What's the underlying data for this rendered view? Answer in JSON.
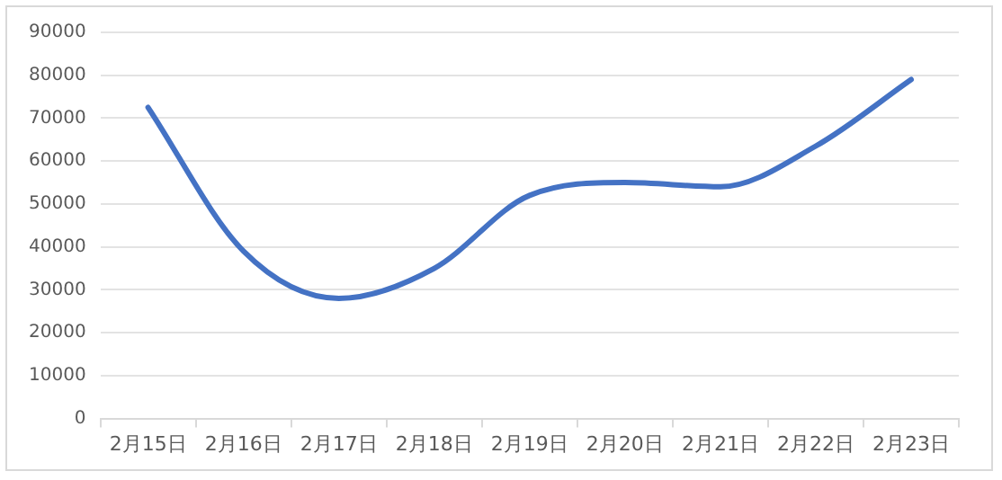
{
  "chart_data": {
    "type": "line",
    "categories": [
      "2月15日",
      "2月16日",
      "2月17日",
      "2月18日",
      "2月19日",
      "2月20日",
      "2月21日",
      "2月22日",
      "2月23日"
    ],
    "series": [
      {
        "color": "#4472c4",
        "values": [
          72500,
          39000,
          28000,
          35000,
          52000,
          55000,
          54000,
          63500,
          79000
        ]
      }
    ],
    "ylim": [
      0,
      90000
    ],
    "yticks": [
      0,
      10000,
      20000,
      30000,
      40000,
      50000,
      60000,
      70000,
      80000,
      90000
    ],
    "grid": "y",
    "legend": false,
    "marker": "none",
    "line_style": "solid"
  }
}
